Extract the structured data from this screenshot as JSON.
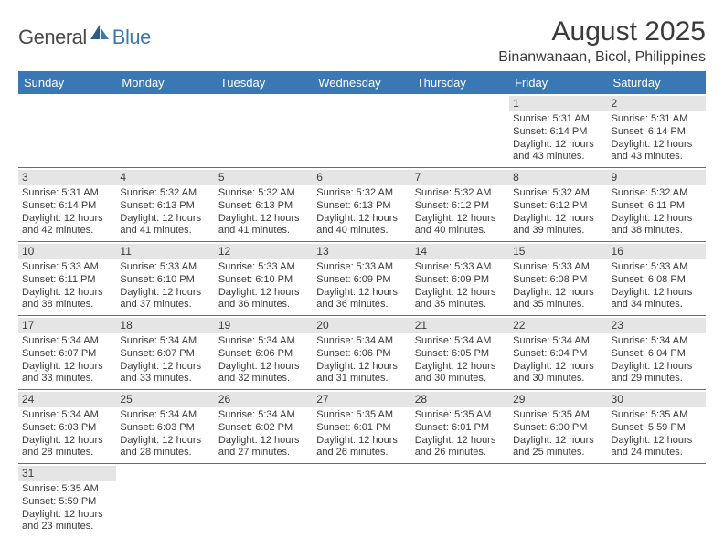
{
  "logo": {
    "part1": "General",
    "part2": "Blue"
  },
  "title": "August 2025",
  "location": "Binanwanaan, Bicol, Philippines",
  "colors": {
    "header_bg": "#3a78b5",
    "header_text": "#ffffff",
    "daynum_bg": "#e5e5e5",
    "text": "#3a3a3a",
    "rule": "#3a78b5",
    "page_bg": "#ffffff",
    "logo_blue": "#3a78b5",
    "logo_gray": "#4a4a4a"
  },
  "typography": {
    "title_fontsize": 30,
    "location_fontsize": 16,
    "header_fontsize": 13,
    "cell_fontsize": 11,
    "daynum_fontsize": 12,
    "logo_fontsize": 22
  },
  "day_headers": [
    "Sunday",
    "Monday",
    "Tuesday",
    "Wednesday",
    "Thursday",
    "Friday",
    "Saturday"
  ],
  "weeks": [
    [
      {
        "n": "",
        "sr": "",
        "ss": "",
        "dl": ""
      },
      {
        "n": "",
        "sr": "",
        "ss": "",
        "dl": ""
      },
      {
        "n": "",
        "sr": "",
        "ss": "",
        "dl": ""
      },
      {
        "n": "",
        "sr": "",
        "ss": "",
        "dl": ""
      },
      {
        "n": "",
        "sr": "",
        "ss": "",
        "dl": ""
      },
      {
        "n": "1",
        "sr": "Sunrise: 5:31 AM",
        "ss": "Sunset: 6:14 PM",
        "dl": "Daylight: 12 hours and 43 minutes."
      },
      {
        "n": "2",
        "sr": "Sunrise: 5:31 AM",
        "ss": "Sunset: 6:14 PM",
        "dl": "Daylight: 12 hours and 43 minutes."
      }
    ],
    [
      {
        "n": "3",
        "sr": "Sunrise: 5:31 AM",
        "ss": "Sunset: 6:14 PM",
        "dl": "Daylight: 12 hours and 42 minutes."
      },
      {
        "n": "4",
        "sr": "Sunrise: 5:32 AM",
        "ss": "Sunset: 6:13 PM",
        "dl": "Daylight: 12 hours and 41 minutes."
      },
      {
        "n": "5",
        "sr": "Sunrise: 5:32 AM",
        "ss": "Sunset: 6:13 PM",
        "dl": "Daylight: 12 hours and 41 minutes."
      },
      {
        "n": "6",
        "sr": "Sunrise: 5:32 AM",
        "ss": "Sunset: 6:13 PM",
        "dl": "Daylight: 12 hours and 40 minutes."
      },
      {
        "n": "7",
        "sr": "Sunrise: 5:32 AM",
        "ss": "Sunset: 6:12 PM",
        "dl": "Daylight: 12 hours and 40 minutes."
      },
      {
        "n": "8",
        "sr": "Sunrise: 5:32 AM",
        "ss": "Sunset: 6:12 PM",
        "dl": "Daylight: 12 hours and 39 minutes."
      },
      {
        "n": "9",
        "sr": "Sunrise: 5:32 AM",
        "ss": "Sunset: 6:11 PM",
        "dl": "Daylight: 12 hours and 38 minutes."
      }
    ],
    [
      {
        "n": "10",
        "sr": "Sunrise: 5:33 AM",
        "ss": "Sunset: 6:11 PM",
        "dl": "Daylight: 12 hours and 38 minutes."
      },
      {
        "n": "11",
        "sr": "Sunrise: 5:33 AM",
        "ss": "Sunset: 6:10 PM",
        "dl": "Daylight: 12 hours and 37 minutes."
      },
      {
        "n": "12",
        "sr": "Sunrise: 5:33 AM",
        "ss": "Sunset: 6:10 PM",
        "dl": "Daylight: 12 hours and 36 minutes."
      },
      {
        "n": "13",
        "sr": "Sunrise: 5:33 AM",
        "ss": "Sunset: 6:09 PM",
        "dl": "Daylight: 12 hours and 36 minutes."
      },
      {
        "n": "14",
        "sr": "Sunrise: 5:33 AM",
        "ss": "Sunset: 6:09 PM",
        "dl": "Daylight: 12 hours and 35 minutes."
      },
      {
        "n": "15",
        "sr": "Sunrise: 5:33 AM",
        "ss": "Sunset: 6:08 PM",
        "dl": "Daylight: 12 hours and 35 minutes."
      },
      {
        "n": "16",
        "sr": "Sunrise: 5:33 AM",
        "ss": "Sunset: 6:08 PM",
        "dl": "Daylight: 12 hours and 34 minutes."
      }
    ],
    [
      {
        "n": "17",
        "sr": "Sunrise: 5:34 AM",
        "ss": "Sunset: 6:07 PM",
        "dl": "Daylight: 12 hours and 33 minutes."
      },
      {
        "n": "18",
        "sr": "Sunrise: 5:34 AM",
        "ss": "Sunset: 6:07 PM",
        "dl": "Daylight: 12 hours and 33 minutes."
      },
      {
        "n": "19",
        "sr": "Sunrise: 5:34 AM",
        "ss": "Sunset: 6:06 PM",
        "dl": "Daylight: 12 hours and 32 minutes."
      },
      {
        "n": "20",
        "sr": "Sunrise: 5:34 AM",
        "ss": "Sunset: 6:06 PM",
        "dl": "Daylight: 12 hours and 31 minutes."
      },
      {
        "n": "21",
        "sr": "Sunrise: 5:34 AM",
        "ss": "Sunset: 6:05 PM",
        "dl": "Daylight: 12 hours and 30 minutes."
      },
      {
        "n": "22",
        "sr": "Sunrise: 5:34 AM",
        "ss": "Sunset: 6:04 PM",
        "dl": "Daylight: 12 hours and 30 minutes."
      },
      {
        "n": "23",
        "sr": "Sunrise: 5:34 AM",
        "ss": "Sunset: 6:04 PM",
        "dl": "Daylight: 12 hours and 29 minutes."
      }
    ],
    [
      {
        "n": "24",
        "sr": "Sunrise: 5:34 AM",
        "ss": "Sunset: 6:03 PM",
        "dl": "Daylight: 12 hours and 28 minutes."
      },
      {
        "n": "25",
        "sr": "Sunrise: 5:34 AM",
        "ss": "Sunset: 6:03 PM",
        "dl": "Daylight: 12 hours and 28 minutes."
      },
      {
        "n": "26",
        "sr": "Sunrise: 5:34 AM",
        "ss": "Sunset: 6:02 PM",
        "dl": "Daylight: 12 hours and 27 minutes."
      },
      {
        "n": "27",
        "sr": "Sunrise: 5:35 AM",
        "ss": "Sunset: 6:01 PM",
        "dl": "Daylight: 12 hours and 26 minutes."
      },
      {
        "n": "28",
        "sr": "Sunrise: 5:35 AM",
        "ss": "Sunset: 6:01 PM",
        "dl": "Daylight: 12 hours and 26 minutes."
      },
      {
        "n": "29",
        "sr": "Sunrise: 5:35 AM",
        "ss": "Sunset: 6:00 PM",
        "dl": "Daylight: 12 hours and 25 minutes."
      },
      {
        "n": "30",
        "sr": "Sunrise: 5:35 AM",
        "ss": "Sunset: 5:59 PM",
        "dl": "Daylight: 12 hours and 24 minutes."
      }
    ],
    [
      {
        "n": "31",
        "sr": "Sunrise: 5:35 AM",
        "ss": "Sunset: 5:59 PM",
        "dl": "Daylight: 12 hours and 23 minutes."
      },
      {
        "n": "",
        "sr": "",
        "ss": "",
        "dl": ""
      },
      {
        "n": "",
        "sr": "",
        "ss": "",
        "dl": ""
      },
      {
        "n": "",
        "sr": "",
        "ss": "",
        "dl": ""
      },
      {
        "n": "",
        "sr": "",
        "ss": "",
        "dl": ""
      },
      {
        "n": "",
        "sr": "",
        "ss": "",
        "dl": ""
      },
      {
        "n": "",
        "sr": "",
        "ss": "",
        "dl": ""
      }
    ]
  ]
}
